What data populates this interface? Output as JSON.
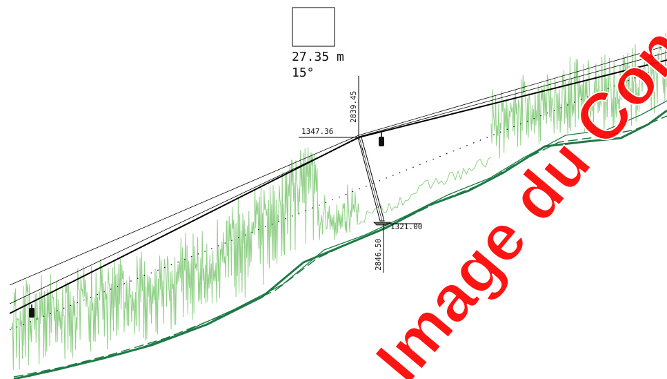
{
  "legend": {
    "distance": "27.35 m",
    "angle": "15°"
  },
  "dimensions": {
    "top_label": "2839.45",
    "left_label": "1347.36",
    "base_label": "1321.00",
    "bottom_label": "2846.50"
  },
  "watermark": {
    "text": "Image du Conseil général",
    "color": "#ff0000"
  },
  "colors": {
    "cable": "#000000",
    "terrain": "#1e7a45",
    "vegetation": "#8fcf86"
  },
  "icons": {
    "cabin": "gondola-cabin-icon",
    "pylon_base": "pylon-foundation-icon"
  }
}
